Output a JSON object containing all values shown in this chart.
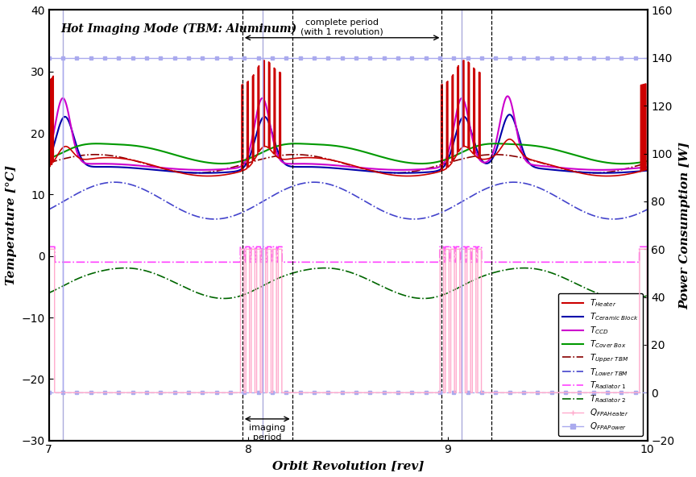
{
  "title": "Hot Imaging Mode (TBM: Aluminum)",
  "xlabel": "Orbit Revolution [rev]",
  "ylabel_left": "Temperature [°C]",
  "ylabel_right": "Power Consumption [W]",
  "xlim": [
    7,
    10
  ],
  "ylim_left": [
    -30,
    40
  ],
  "ylim_right": [
    -20,
    160
  ],
  "xticks": [
    7,
    8,
    9,
    10
  ],
  "yticks_left": [
    -30,
    -20,
    -10,
    0,
    10,
    20,
    30,
    40
  ],
  "yticks_right": [
    -20,
    0,
    20,
    40,
    60,
    80,
    100,
    120,
    140,
    160
  ],
  "annotation_complete_period": "complete period\n(with 1 revolution)",
  "annotation_imaging_period": "imaging\nperiod",
  "complete_period_x1": 7.97,
  "complete_period_x2": 8.97,
  "imaging_period_x1": 7.97,
  "imaging_period_x2": 8.22,
  "vline1_x": 7.97,
  "vline2_x": 8.97,
  "vline_solid1": 7.07,
  "vline_solid2": 8.07,
  "vline_solid3": 9.07,
  "colors": {
    "T_heater": "#cc0000",
    "T_ceramic_block": "#0000aa",
    "T_CCD": "#cc00cc",
    "T_cover_box": "#009900",
    "T_upper_TBM": "#880000",
    "T_lower_TBM": "#4444cc",
    "T_radiator1": "#ff44ff",
    "T_radiator2": "#006600",
    "Q_FPA_heater": "#ffaacc",
    "Q_FPA_power": "#aaaaee"
  }
}
